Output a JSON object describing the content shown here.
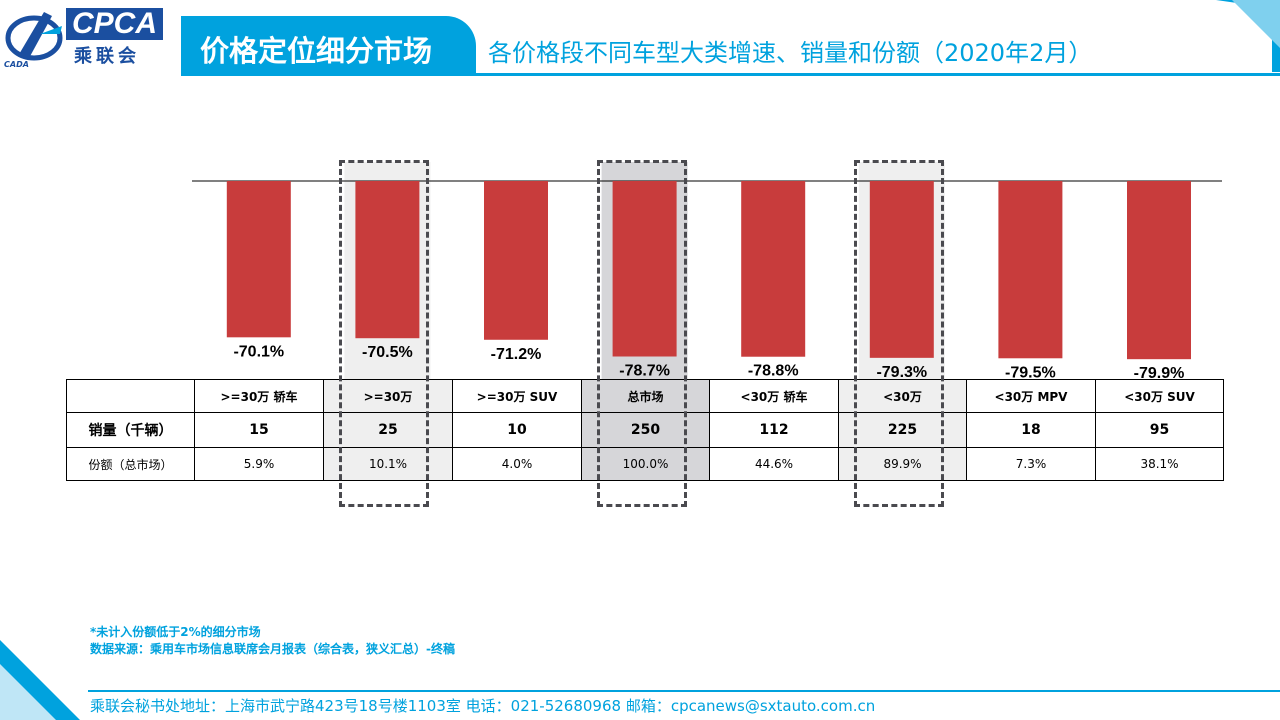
{
  "header": {
    "logo_text": "CPCA",
    "logo_cn": "乘联会",
    "logo_small": "CADA",
    "title": "价格定位细分市场",
    "subtitle": "各价格段不同车型大类增速、销量和份额（2020年2月）"
  },
  "colors": {
    "accent": "#00a2de",
    "bar": "#c83c3c",
    "highlight_light": "#efefef",
    "highlight_dark": "#d6d6d9"
  },
  "chart_data": {
    "type": "bar",
    "categories": [
      ">=30万 轿车",
      ">=30万",
      ">=30万 SUV",
      "总市场",
      "<30万 轿车",
      "<30万",
      "<30万 MPV",
      "<30万 SUV"
    ],
    "values": [
      -70.1,
      -70.5,
      -71.2,
      -78.7,
      -78.8,
      -79.3,
      -79.5,
      -79.9
    ],
    "value_labels": [
      "-70.1%",
      "-70.5%",
      "-71.2%",
      "-78.7%",
      "-78.8%",
      "-79.3%",
      "-79.5%",
      "-79.9%"
    ],
    "ylim": [
      -80,
      0
    ],
    "grid": false,
    "highlighted_categories": [
      ">=30万",
      "总市场",
      "<30万"
    ]
  },
  "table": {
    "header_labels": [
      ">=30万 轿车",
      ">=30万",
      ">=30万 SUV",
      "总市场",
      "<30万 轿车",
      "<30万",
      "<30万 MPV",
      "<30万 SUV"
    ],
    "rows": [
      {
        "label": "销量（千辆）",
        "values": [
          "15",
          "25",
          "10",
          "250",
          "112",
          "225",
          "18",
          "95"
        ]
      },
      {
        "label": "份额（总市场）",
        "values": [
          "5.9%",
          "10.1%",
          "4.0%",
          "100.0%",
          "44.6%",
          "89.9%",
          "7.3%",
          "38.1%"
        ]
      }
    ]
  },
  "notes": {
    "line1": "*未计入份额低于2%的细分市场",
    "line2": "数据来源：乘用车市场信息联席会月报表（综合表，狭义汇总）-终稿"
  },
  "footer": {
    "text": "乘联会秘书处地址：上海市武宁路423号18号楼1103室  电话：021-52680968   邮箱：cpcanews@sxtauto.com.cn"
  }
}
